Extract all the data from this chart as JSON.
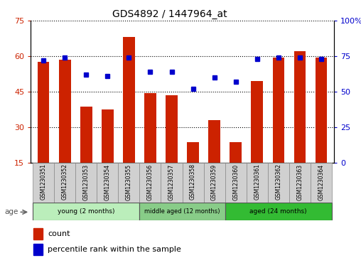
{
  "title": "GDS4892 / 1447964_at",
  "samples": [
    "GSM1230351",
    "GSM1230352",
    "GSM1230353",
    "GSM1230354",
    "GSM1230355",
    "GSM1230356",
    "GSM1230357",
    "GSM1230358",
    "GSM1230359",
    "GSM1230360",
    "GSM1230361",
    "GSM1230362",
    "GSM1230363",
    "GSM1230364"
  ],
  "counts": [
    57.5,
    58.5,
    38.5,
    37.5,
    68.0,
    44.5,
    43.5,
    23.5,
    33.0,
    23.5,
    49.5,
    59.5,
    62.0,
    59.5
  ],
  "percentiles": [
    72,
    74,
    62,
    61,
    74,
    64,
    64,
    52,
    60,
    57,
    73,
    74,
    74,
    73
  ],
  "ylim_left": [
    15,
    75
  ],
  "ylim_right": [
    0,
    100
  ],
  "yticks_left": [
    15,
    30,
    45,
    60,
    75
  ],
  "yticks_right": [
    0,
    25,
    50,
    75,
    100
  ],
  "ytick_labels_right": [
    "0",
    "25",
    "50",
    "75",
    "100%"
  ],
  "bar_color": "#cc2200",
  "dot_color": "#0000cc",
  "groups": [
    {
      "label": "young (2 months)",
      "start": 0,
      "end": 5,
      "color": "#bbeebb"
    },
    {
      "label": "middle aged (12 months)",
      "start": 5,
      "end": 9,
      "color": "#88cc88"
    },
    {
      "label": "aged (24 months)",
      "start": 9,
      "end": 14,
      "color": "#33bb33"
    }
  ],
  "age_label": "age",
  "legend_count": "count",
  "legend_percentile": "percentile rank within the sample",
  "bar_bottom": 15,
  "bar_width": 0.55
}
